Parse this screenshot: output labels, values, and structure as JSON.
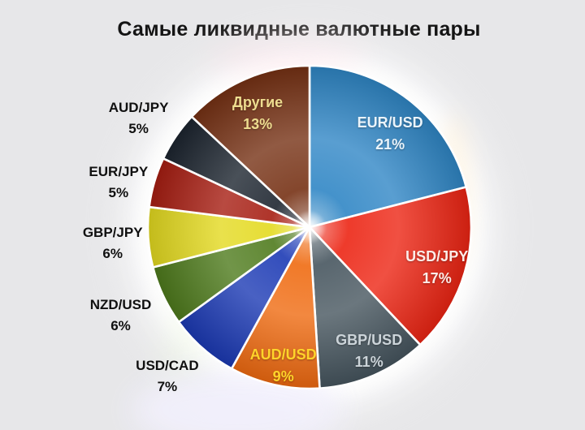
{
  "title": "Самые ликвидные валютные пары",
  "background_color": "#e7e7e9",
  "chart_data": {
    "type": "pie",
    "title": "Самые ликвидные валютные пары",
    "legend_position": "none",
    "start_angle_deg": 0,
    "direction": "clockwise",
    "slices": [
      {
        "label": "EUR/USD",
        "value": 21,
        "pct_label": "21%",
        "color": "#2f86c5",
        "label_color": "#eaf4fb",
        "label_inside": true
      },
      {
        "label": "USD/JPY",
        "value": 17,
        "pct_label": "17%",
        "color": "#ec2413",
        "label_color": "#fcece8",
        "label_inside": true
      },
      {
        "label": "GBP/USD",
        "value": 11,
        "pct_label": "11%",
        "color": "#46555e",
        "label_color": "#ccd4d9",
        "label_inside": true
      },
      {
        "label": "AUD/USD",
        "value": 9,
        "pct_label": "9%",
        "color": "#ef6a10",
        "label_color": "#ffd42a",
        "label_inside": true
      },
      {
        "label": "USD/CAD",
        "value": 7,
        "pct_label": "7%",
        "color": "#1b39b4",
        "label_color": "#101010",
        "label_inside": false
      },
      {
        "label": "NZD/USD",
        "value": 6,
        "pct_label": "6%",
        "color": "#4e7a1c",
        "label_color": "#101010",
        "label_inside": false
      },
      {
        "label": "GBP/JPY",
        "value": 6,
        "pct_label": "6%",
        "color": "#e3da1f",
        "label_color": "#101010",
        "label_inside": false
      },
      {
        "label": "EUR/JPY",
        "value": 5,
        "pct_label": "5%",
        "color": "#a61d12",
        "label_color": "#101010",
        "label_inside": false
      },
      {
        "label": "AUD/JPY",
        "value": 5,
        "pct_label": "5%",
        "color": "#1c242e",
        "label_color": "#101010",
        "label_inside": false
      },
      {
        "label": "Другие",
        "value": 13,
        "pct_label": "13%",
        "color": "#763114",
        "label_color": "#eedd90",
        "label_inside": true
      }
    ]
  }
}
